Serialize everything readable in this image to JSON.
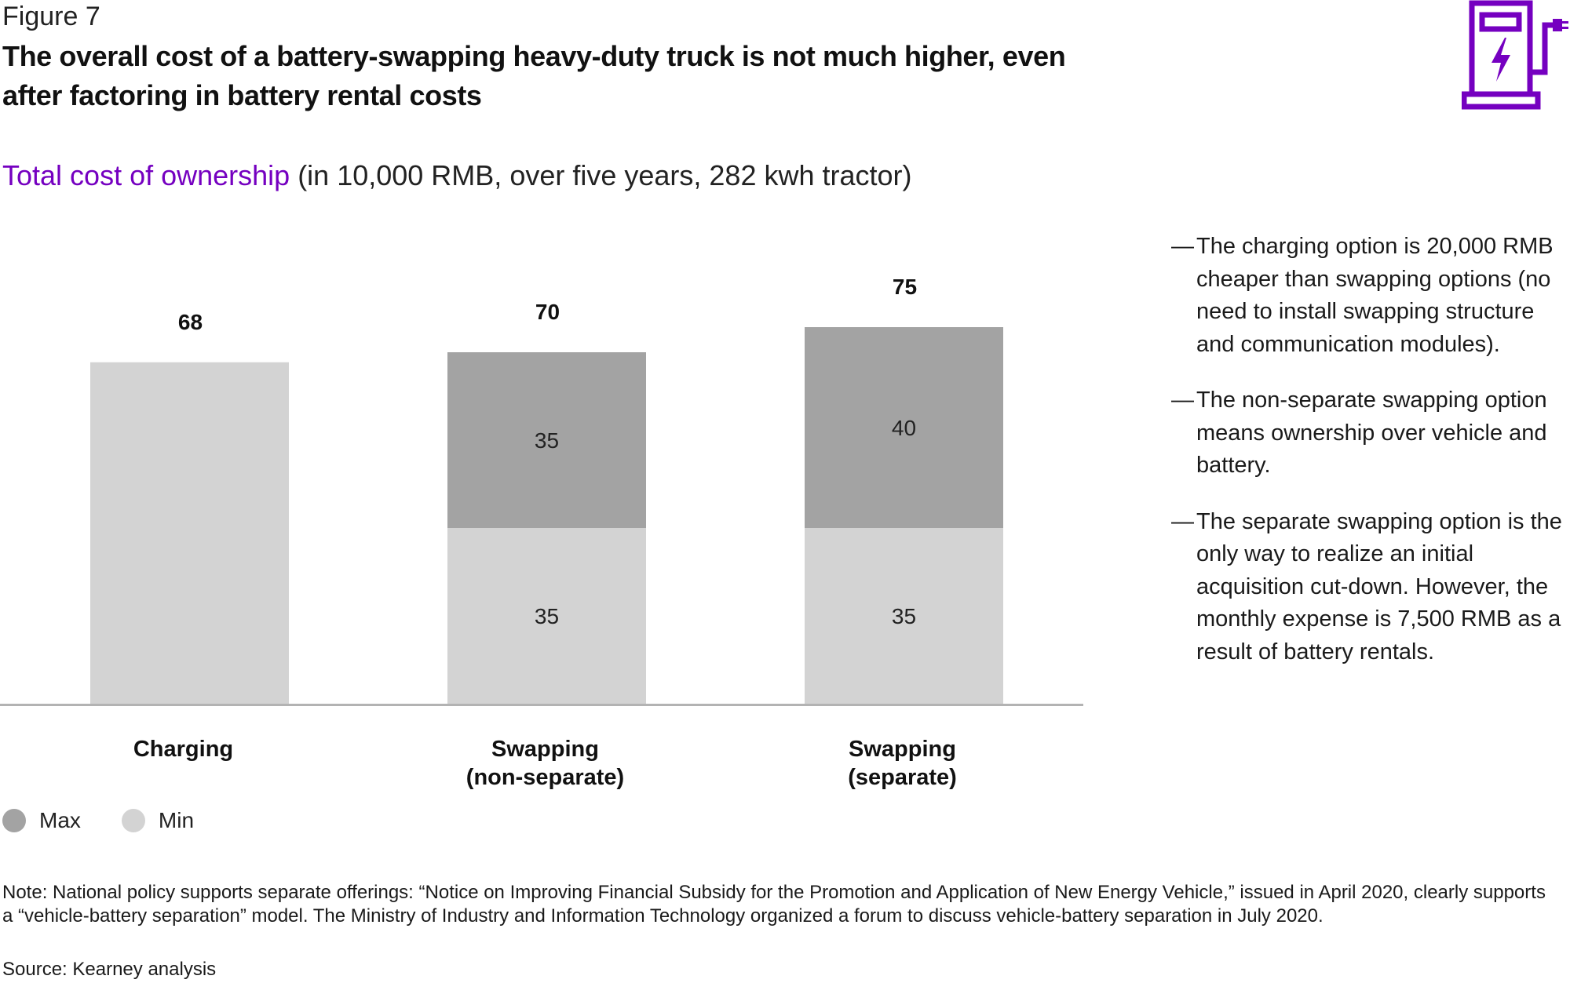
{
  "figure_label": "Figure 7",
  "headline": "The overall cost of a battery-swapping heavy-duty truck is not much higher, even after factoring in battery rental costs",
  "subtitle": {
    "accent": "Total cost of ownership",
    "rest": " (in 10,000 RMB, over five years, 282 kwh tractor)"
  },
  "colors": {
    "accent": "#7500c0",
    "max": "#a3a3a3",
    "min": "#d3d3d3",
    "axis": "#b3b3b3"
  },
  "logo_icon": "battery-swap-station-icon",
  "chart_data": {
    "type": "bar",
    "stacked": true,
    "categories": [
      "Charging",
      "Swapping\n(non-separate)",
      "Swapping\n(separate)"
    ],
    "series": [
      {
        "name": "Min",
        "values": [
          68,
          35,
          35
        ],
        "labels": [
          "",
          "35",
          "35"
        ]
      },
      {
        "name": "Max",
        "values": [
          0,
          35,
          40
        ],
        "labels": [
          "",
          "35",
          "40"
        ]
      }
    ],
    "totals": [
      68,
      70,
      75
    ],
    "ylim": [
      0,
      75
    ],
    "legend": [
      "Max",
      "Min"
    ],
    "legend_position": "bottom-left",
    "grid": false
  },
  "bullets": [
    "The charging option is 20,000 RMB cheaper than swapping options (no need to install swapping structure and communication modules).",
    "The non-separate swapping option means ownership over vehicle and battery.",
    "The separate swapping option is the only way to realize an initial acquisition cut-down. However, the monthly expense is 7,500 RMB as a result of battery rentals."
  ],
  "bullet_dash": "—",
  "note": "Note: National policy supports separate offerings: “Notice on Improving Financial Subsidy for the Promotion and Application of New Energy Vehicle,” issued in April 2020, clearly supports a “vehicle-battery separation” model. The Ministry of Industry and Information Technology organized a forum to discuss vehicle-battery separation in July 2020.",
  "source": "Source: Kearney analysis"
}
